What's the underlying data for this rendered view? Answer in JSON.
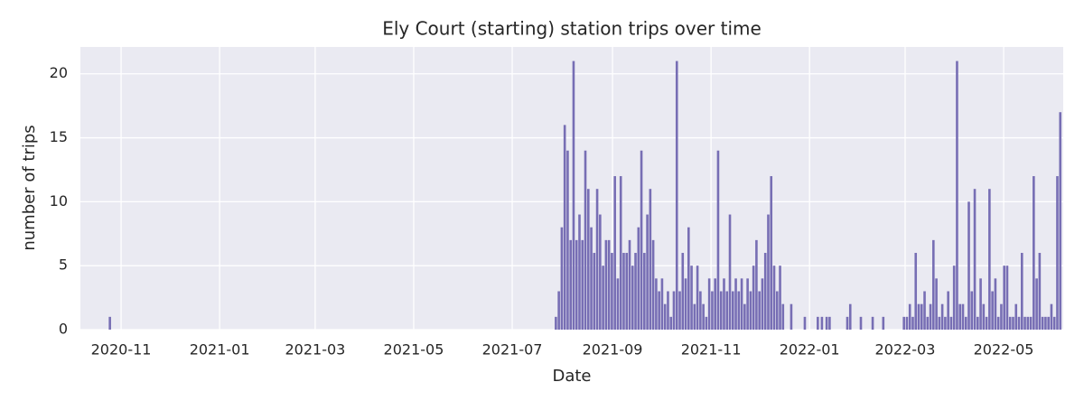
{
  "chart_data": {
    "type": "bar",
    "title": "Ely Court (starting) station trips over time",
    "x_label": "Date",
    "y_label": "number of trips",
    "color": "#776eb4",
    "grid": true,
    "xlim": [
      2020.764,
      2022.43
    ],
    "ylim": [
      0,
      22.1
    ],
    "xticks": [
      {
        "value": 2020.833,
        "label": "2020-11"
      },
      {
        "value": 2021.0,
        "label": "2021-01"
      },
      {
        "value": 2021.162,
        "label": "2021-03"
      },
      {
        "value": 2021.329,
        "label": "2021-05"
      },
      {
        "value": 2021.496,
        "label": "2021-07"
      },
      {
        "value": 2021.666,
        "label": "2021-09"
      },
      {
        "value": 2021.833,
        "label": "2021-11"
      },
      {
        "value": 2022.0,
        "label": "2022-01"
      },
      {
        "value": 2022.162,
        "label": "2022-03"
      },
      {
        "value": 2022.329,
        "label": "2022-05"
      }
    ],
    "yticks": [
      0,
      5,
      10,
      15,
      20
    ],
    "x": [
      2020.814,
      2021.57,
      2021.575,
      2021.58,
      2021.585,
      2021.59,
      2021.595,
      2021.6,
      2021.605,
      2021.61,
      2021.615,
      2021.62,
      2021.625,
      2021.63,
      2021.635,
      2021.64,
      2021.645,
      2021.65,
      2021.655,
      2021.66,
      2021.665,
      2021.67,
      2021.675,
      2021.68,
      2021.685,
      2021.69,
      2021.695,
      2021.7,
      2021.705,
      2021.71,
      2021.715,
      2021.72,
      2021.725,
      2021.73,
      2021.735,
      2021.74,
      2021.745,
      2021.75,
      2021.755,
      2021.76,
      2021.765,
      2021.77,
      2021.775,
      2021.78,
      2021.785,
      2021.79,
      2021.795,
      2021.8,
      2021.805,
      2021.81,
      2021.815,
      2021.82,
      2021.825,
      2021.83,
      2021.835,
      2021.84,
      2021.845,
      2021.85,
      2021.855,
      2021.86,
      2021.865,
      2021.87,
      2021.875,
      2021.88,
      2021.885,
      2021.89,
      2021.895,
      2021.9,
      2021.905,
      2021.91,
      2021.915,
      2021.92,
      2021.925,
      2021.93,
      2021.935,
      2021.94,
      2021.945,
      2021.95,
      2021.955,
      2021.969,
      2021.992,
      2022.014,
      2022.021,
      2022.029,
      2022.034,
      2022.064,
      2022.069,
      2022.087,
      2022.107,
      2022.125,
      2022.16,
      2022.165,
      2022.17,
      2022.175,
      2022.18,
      2022.185,
      2022.19,
      2022.195,
      2022.2,
      2022.205,
      2022.21,
      2022.215,
      2022.22,
      2022.225,
      2022.23,
      2022.235,
      2022.24,
      2022.245,
      2022.25,
      2022.255,
      2022.26,
      2022.265,
      2022.27,
      2022.275,
      2022.28,
      2022.285,
      2022.29,
      2022.295,
      2022.3,
      2022.305,
      2022.31,
      2022.315,
      2022.32,
      2022.325,
      2022.33,
      2022.335,
      2022.34,
      2022.345,
      2022.35,
      2022.355,
      2022.36,
      2022.365,
      2022.37,
      2022.375,
      2022.38,
      2022.385,
      2022.39,
      2022.395,
      2022.4,
      2022.405,
      2022.41,
      2022.415,
      2022.42,
      2022.425
    ],
    "values": [
      1,
      1,
      3,
      8,
      16,
      14,
      7,
      21,
      7,
      9,
      7,
      14,
      11,
      8,
      6,
      11,
      9,
      5,
      7,
      7,
      6,
      12,
      4,
      12,
      6,
      6,
      7,
      5,
      6,
      8,
      14,
      6,
      9,
      11,
      7,
      4,
      3,
      4,
      2,
      3,
      1,
      3,
      21,
      3,
      6,
      4,
      8,
      5,
      2,
      5,
      3,
      2,
      1,
      4,
      3,
      4,
      14,
      3,
      4,
      3,
      9,
      3,
      4,
      3,
      4,
      2,
      4,
      3,
      5,
      7,
      3,
      4,
      6,
      9,
      12,
      5,
      3,
      5,
      2,
      2,
      1,
      1,
      1,
      1,
      1,
      1,
      2,
      1,
      1,
      1,
      1,
      1,
      2,
      1,
      6,
      2,
      2,
      3,
      1,
      2,
      7,
      4,
      1,
      2,
      1,
      3,
      1,
      5,
      21,
      2,
      2,
      1,
      10,
      3,
      11,
      1,
      4,
      2,
      1,
      11,
      3,
      4,
      1,
      2,
      5,
      5,
      1,
      1,
      2,
      1,
      6,
      1,
      1,
      1,
      12,
      4,
      6,
      1,
      1,
      1,
      2,
      1,
      12,
      17
    ]
  }
}
